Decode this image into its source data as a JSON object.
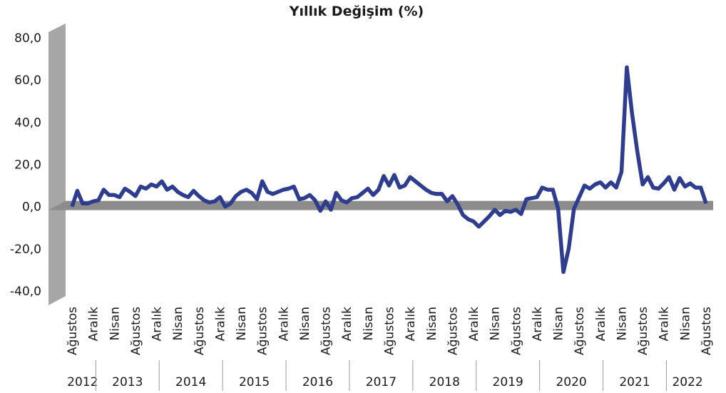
{
  "chart_data": {
    "type": "line",
    "title": "Yıllık Değişim (%)",
    "categories": [
      "Ağustos",
      null,
      null,
      null,
      "Aralık",
      null,
      null,
      null,
      "Nisan",
      null,
      null,
      null,
      "Ağustos",
      null,
      null,
      null,
      "Aralık",
      null,
      null,
      null,
      "Nisan",
      null,
      null,
      null,
      "Ağustos",
      null,
      null,
      null,
      "Aralık",
      null,
      null,
      null,
      "Nisan",
      null,
      null,
      null,
      "Ağustos",
      null,
      null,
      null,
      "Aralık",
      null,
      null,
      null,
      "Nisan",
      null,
      null,
      null,
      "Ağustos",
      null,
      null,
      null,
      "Aralık",
      null,
      null,
      null,
      "Nisan",
      null,
      null,
      null,
      "Ağustos",
      null,
      null,
      null,
      "Aralık",
      null,
      null,
      null,
      "Nisan",
      null,
      null,
      null,
      "Ağustos",
      null,
      null,
      null,
      "Aralık",
      null,
      null,
      null,
      "Nisan",
      null,
      null,
      null,
      "Ağustos",
      null,
      null,
      null,
      "Aralık",
      null,
      null,
      null,
      "Nisan",
      null,
      null,
      null,
      "Ağustos",
      null,
      null,
      null,
      "Aralık",
      null,
      null,
      null,
      "Nisan",
      null,
      null,
      null,
      "Ağustos",
      null,
      null,
      null,
      "Aralık",
      null,
      null,
      null,
      "Nisan",
      null,
      null,
      null,
      "Ağustos"
    ],
    "year_groups": [
      "2012",
      "2013",
      "2014",
      "2015",
      "2016",
      "2017",
      "2018",
      "2019",
      "2020",
      "2021",
      "2022"
    ],
    "series": [
      {
        "name": "Yıllık Değişim",
        "color": "#2e3d8f",
        "values": [
          0,
          7.5,
          1.5,
          1.5,
          2.5,
          3,
          8,
          5.5,
          5.5,
          4.5,
          8.5,
          7,
          5,
          9.5,
          8.5,
          10.5,
          9.5,
          12,
          8,
          9.5,
          7,
          5.5,
          4.5,
          7.5,
          5,
          3,
          2,
          2.5,
          4.5,
          0,
          1.5,
          5,
          7,
          8,
          6.5,
          3.5,
          12,
          7,
          6,
          7,
          8,
          8.5,
          9.5,
          3.5,
          4,
          5.5,
          3,
          -2,
          2.5,
          -1.5,
          6.5,
          3,
          2,
          4,
          4.5,
          6.5,
          8.5,
          5.5,
          8,
          14.5,
          10,
          15,
          9,
          10,
          14,
          12,
          10,
          8,
          6.5,
          6,
          6,
          2.5,
          5,
          1,
          -4,
          -6,
          -7,
          -9.5,
          -7,
          -4.5,
          -1.5,
          -4,
          -2,
          -2.5,
          -1.5,
          -3.5,
          3.5,
          4,
          4.5,
          9,
          8,
          8,
          -1,
          -31,
          -20,
          -1,
          4.5,
          10,
          8.5,
          10.5,
          11.5,
          9,
          11.5,
          9,
          16.5,
          66,
          44,
          26,
          10.5,
          14,
          9,
          8.5,
          11,
          14,
          8,
          13.5,
          9.5,
          11,
          9,
          9,
          1.5
        ]
      }
    ],
    "ylim": [
      -40,
      80
    ],
    "yticks": [
      {
        "value": -40,
        "label": "-40,0"
      },
      {
        "value": -20,
        "label": "-20,0"
      },
      {
        "value": 0,
        "label": "0,0"
      },
      {
        "value": 20,
        "label": "20,0"
      },
      {
        "value": 40,
        "label": "40,0"
      },
      {
        "value": 60,
        "label": "60,0"
      },
      {
        "value": 80,
        "label": "80,0"
      }
    ]
  }
}
